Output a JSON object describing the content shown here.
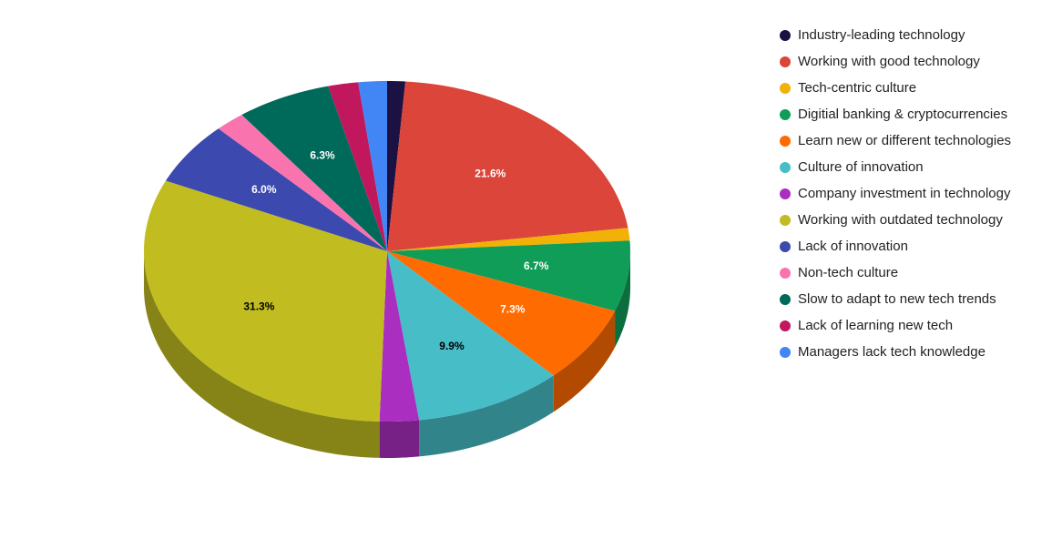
{
  "chart_data": {
    "type": "pie3d",
    "categories": [
      "Industry-leading technology",
      "Working with good technology",
      "Tech-centric culture",
      "Digitial banking & cryptocurrencies",
      "Learn new or different technologies",
      "Culture of innovation",
      "Company investment in technology",
      "Working with outdated technology",
      "Lack of innovation",
      "Non-tech culture",
      "Slow to adapt to new tech trends",
      "Lack of learning new tech",
      "Managers lack tech knowledge"
    ],
    "values": [
      1.2,
      21.6,
      1.2,
      6.7,
      7.3,
      9.9,
      2.6,
      31.3,
      6.0,
      2.0,
      6.3,
      2.0,
      1.9
    ],
    "value_labels": [
      null,
      "21.6%",
      null,
      "6.7%",
      "7.3%",
      "9.9%",
      null,
      "31.3%",
      "6.0%",
      null,
      "6.3%",
      null,
      null
    ],
    "colors": [
      "#1b1142",
      "#dc4539",
      "#f2b107",
      "#109d58",
      "#fe6b01",
      "#47bdc7",
      "#aa2ec0",
      "#c1bd21",
      "#3c49ae",
      "#f974ae",
      "#006a5a",
      "#c0175d",
      "#4285f4"
    ],
    "legend": "right"
  }
}
